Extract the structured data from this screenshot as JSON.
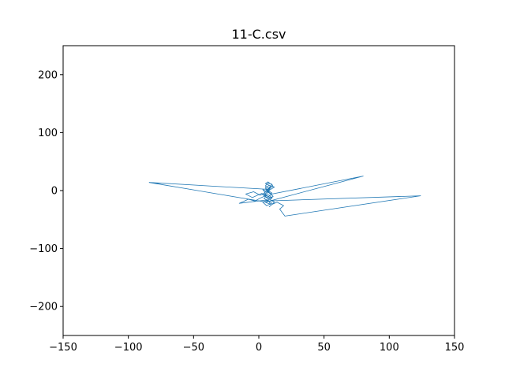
{
  "chart_data": {
    "type": "line",
    "title": "11-C.csv",
    "xlabel": "",
    "ylabel": "",
    "xlim": [
      -150,
      150
    ],
    "ylim": [
      -250,
      250
    ],
    "grid": false,
    "xticks": [
      -150,
      -100,
      -50,
      0,
      50,
      100,
      150
    ],
    "yticks": [
      -200,
      -100,
      0,
      100,
      200
    ],
    "series": [
      {
        "color": "#1f77b4",
        "x": [
          6,
          8,
          7,
          9,
          5,
          7,
          10,
          8,
          6,
          9,
          11,
          7,
          4,
          6,
          9,
          12,
          8,
          5,
          7,
          10,
          9,
          6,
          3,
          5,
          8,
          11,
          10,
          7,
          5,
          8,
          -84,
          6,
          7,
          -15,
          -8,
          -3,
          2,
          6,
          4,
          8,
          10,
          6,
          3,
          7,
          9,
          5,
          80,
          10,
          7,
          5,
          8,
          11,
          9,
          6,
          124,
          20,
          18,
          16,
          19,
          14,
          10,
          8,
          12,
          9,
          6,
          4,
          7,
          10,
          8,
          2,
          -5,
          -10,
          -4,
          1,
          5,
          3,
          7,
          9,
          6,
          8
        ],
        "y": [
          -5,
          -2,
          3,
          8,
          12,
          15,
          10,
          4,
          -1,
          -6,
          -10,
          -14,
          -9,
          -3,
          2,
          6,
          9,
          5,
          0,
          -4,
          -8,
          -12,
          -7,
          -2,
          4,
          7,
          11,
          13,
          8,
          2,
          14,
          -20,
          -16,
          -22,
          -15,
          -18,
          -12,
          -8,
          -14,
          -18,
          -22,
          -26,
          -20,
          -16,
          -24,
          -20,
          25,
          -6,
          -2,
          3,
          -4,
          -10,
          -14,
          -18,
          -9,
          -44,
          -38,
          -32,
          -26,
          -20,
          -24,
          -28,
          -20,
          -16,
          -12,
          -6,
          -10,
          -14,
          -8,
          -5,
          -12,
          -6,
          -2,
          -8,
          -4,
          2,
          -3,
          5,
          0,
          -2
        ]
      }
    ]
  }
}
